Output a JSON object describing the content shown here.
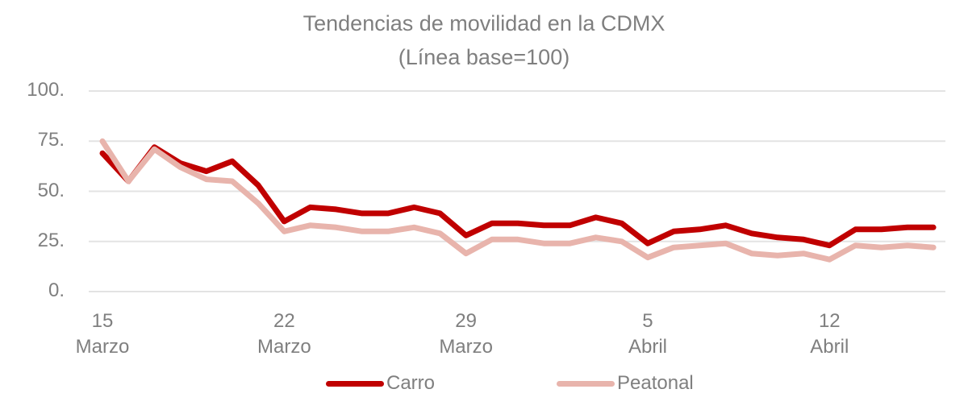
{
  "chart_data": {
    "type": "line",
    "title": "Tendencias de movilidad en la CDMX",
    "subtitle": "(Línea base=100)",
    "xlabel": "",
    "ylabel": "",
    "ylim": [
      0,
      100
    ],
    "yticks": [
      "100.",
      "75.",
      "50.",
      "25.",
      "0."
    ],
    "ytick_values": [
      100,
      75,
      50,
      25,
      0
    ],
    "grid": true,
    "legend_position": "bottom",
    "x": [
      "15 Mar",
      "16 Mar",
      "17 Mar",
      "18 Mar",
      "19 Mar",
      "20 Mar",
      "21 Mar",
      "22 Mar",
      "23 Mar",
      "24 Mar",
      "25 Mar",
      "26 Mar",
      "27 Mar",
      "28 Mar",
      "29 Mar",
      "30 Mar",
      "31 Mar",
      "1 Abr",
      "2 Abr",
      "3 Abr",
      "4 Abr",
      "5 Abr",
      "6 Abr",
      "7 Abr",
      "8 Abr",
      "9 Abr",
      "10 Abr",
      "11 Abr",
      "12 Abr",
      "13 Abr",
      "14 Abr",
      "15 Abr",
      "16 Abr"
    ],
    "xtick_labels": [
      {
        "day": "15",
        "month": "Marzo",
        "index": 0
      },
      {
        "day": "22",
        "month": "Marzo",
        "index": 7
      },
      {
        "day": "29",
        "month": "Marzo",
        "index": 14
      },
      {
        "day": "5",
        "month": "Abril",
        "index": 21
      },
      {
        "day": "12",
        "month": "Abril",
        "index": 28
      }
    ],
    "series": [
      {
        "name": "Carro",
        "color": "#c00000",
        "values": [
          69,
          55,
          72,
          64,
          60,
          65,
          53,
          35,
          42,
          41,
          39,
          39,
          42,
          39,
          28,
          34,
          34,
          33,
          33,
          37,
          34,
          24,
          30,
          31,
          33,
          29,
          27,
          26,
          23,
          31,
          31,
          32,
          32
        ]
      },
      {
        "name": "Peatonal",
        "color": "#e8b4ac",
        "values": [
          75,
          55,
          71,
          62,
          56,
          55,
          44,
          30,
          33,
          32,
          30,
          30,
          32,
          29,
          19,
          26,
          26,
          24,
          24,
          27,
          25,
          17,
          22,
          23,
          24,
          19,
          18,
          19,
          16,
          23,
          22,
          23,
          22
        ]
      }
    ]
  },
  "legend": {
    "carro_label": "Carro",
    "peatonal_label": "Peatonal"
  },
  "colors": {
    "carro": "#c00000",
    "peatonal": "#e8b4ac",
    "text": "#7f7f7f",
    "grid": "#e3e3e3"
  }
}
